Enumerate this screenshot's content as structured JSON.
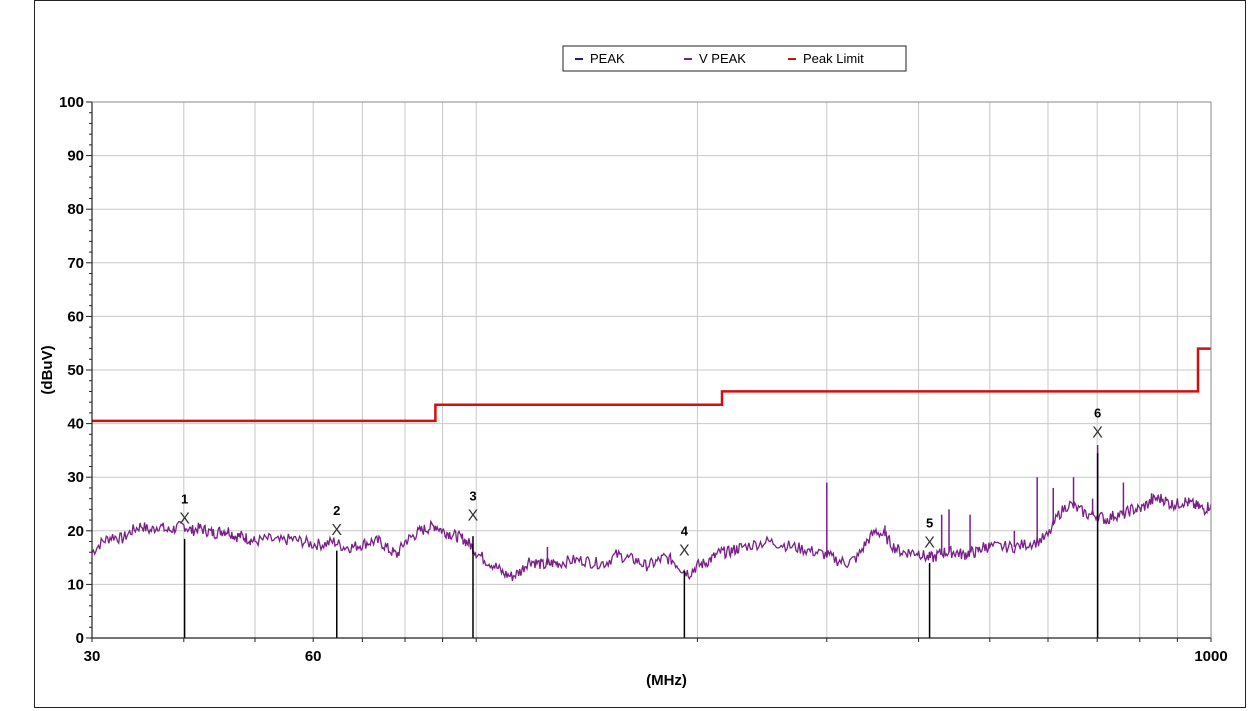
{
  "chart_data": {
    "type": "line",
    "xlabel": "(MHz)",
    "ylabel": "(dBuV)",
    "xscale": "log",
    "xlim": [
      30,
      1000
    ],
    "ylim": [
      0,
      100
    ],
    "x_ticks": [
      30,
      60,
      1000
    ],
    "y_ticks": [
      0,
      10,
      20,
      30,
      40,
      50,
      60,
      70,
      80,
      90,
      100
    ],
    "grid": true,
    "legend_position": "top-center",
    "legend": [
      {
        "name": "PEAK",
        "color": "#1c1c8c"
      },
      {
        "name": "V PEAK",
        "color": "#7a1f8a"
      },
      {
        "name": "Peak Limit",
        "color": "#d01010"
      }
    ],
    "series": [
      {
        "name": "V PEAK",
        "color": "#7a1f8a",
        "x": [
          30,
          31,
          32,
          33,
          34,
          35,
          36,
          37,
          38,
          39,
          40,
          41,
          42,
          43,
          44,
          45,
          46,
          47,
          48,
          49,
          50,
          52,
          54,
          56,
          58,
          60,
          62,
          64,
          66,
          68,
          70,
          72,
          74,
          76,
          78,
          80,
          82,
          84,
          86,
          88,
          90,
          92,
          94,
          96,
          98,
          100,
          103,
          106,
          109,
          112,
          115,
          118,
          121,
          124,
          127,
          130,
          135,
          140,
          145,
          150,
          155,
          160,
          165,
          170,
          175,
          180,
          185,
          190,
          195,
          200,
          205,
          210,
          215,
          220,
          225,
          230,
          240,
          250,
          260,
          270,
          280,
          290,
          300,
          310,
          320,
          330,
          340,
          350,
          360,
          370,
          380,
          390,
          400,
          410,
          420,
          430,
          440,
          450,
          460,
          470,
          480,
          490,
          500,
          520,
          540,
          560,
          580,
          600,
          620,
          640,
          660,
          680,
          700,
          720,
          740,
          760,
          780,
          800,
          820,
          840,
          860,
          880,
          900,
          920,
          940,
          960,
          980,
          1000
        ],
        "y": [
          16,
          18,
          19,
          18.5,
          20,
          21,
          20,
          21,
          20,
          20.5,
          21,
          20,
          20.5,
          20,
          19.5,
          20,
          20,
          19,
          19,
          18.5,
          18,
          18.5,
          18,
          18.5,
          18,
          17.5,
          17.5,
          18,
          17,
          17,
          17.5,
          18,
          18,
          16.5,
          15.5,
          18,
          19,
          20,
          20.5,
          21,
          20,
          19.5,
          19,
          18.5,
          17.5,
          16,
          14.5,
          13.5,
          12,
          11.5,
          12.5,
          14.5,
          14,
          13.5,
          14,
          14,
          14.5,
          14.5,
          14,
          14,
          15.5,
          15,
          14.5,
          13.5,
          14,
          15,
          14.5,
          13,
          12,
          13.5,
          14,
          15,
          16,
          16,
          16.5,
          17,
          17.5,
          18,
          17.5,
          17,
          16.5,
          16,
          15.5,
          14.5,
          14,
          15,
          18,
          20,
          19,
          17,
          16,
          16,
          16,
          15,
          15,
          16,
          16,
          16,
          15.5,
          16,
          16,
          17,
          17,
          17,
          17,
          17.5,
          18,
          19,
          23,
          25,
          24,
          23,
          23,
          22,
          23,
          23,
          24,
          24,
          25,
          26,
          26,
          25,
          25,
          25.5,
          25,
          24.5,
          24,
          25
        ]
      },
      {
        "name": "Peak Limit",
        "color": "#d01010",
        "x": [
          30,
          88,
          88,
          216,
          216,
          960,
          960,
          1000
        ],
        "y": [
          40.5,
          40.5,
          43.5,
          43.5,
          46,
          46,
          54,
          54
        ]
      }
    ],
    "markers": [
      {
        "label": "1",
        "x": 40.1,
        "y": 22.5
      },
      {
        "label": "2",
        "x": 64.6,
        "y": 20.3
      },
      {
        "label": "3",
        "x": 99.0,
        "y": 23.0
      },
      {
        "label": "4",
        "x": 192.0,
        "y": 16.5
      },
      {
        "label": "5",
        "x": 414.0,
        "y": 18.0
      },
      {
        "label": "6",
        "x": 701.0,
        "y": 38.5
      }
    ],
    "spikes": [
      {
        "x": 125,
        "y": 17
      },
      {
        "x": 300,
        "y": 29
      },
      {
        "x": 360,
        "y": 21
      },
      {
        "x": 430,
        "y": 23
      },
      {
        "x": 440,
        "y": 24
      },
      {
        "x": 470,
        "y": 23
      },
      {
        "x": 540,
        "y": 20
      },
      {
        "x": 580,
        "y": 30
      },
      {
        "x": 610,
        "y": 28
      },
      {
        "x": 650,
        "y": 30
      },
      {
        "x": 690,
        "y": 26
      },
      {
        "x": 701,
        "y": 36
      },
      {
        "x": 760,
        "y": 29
      },
      {
        "x": 830,
        "y": 27
      }
    ]
  }
}
